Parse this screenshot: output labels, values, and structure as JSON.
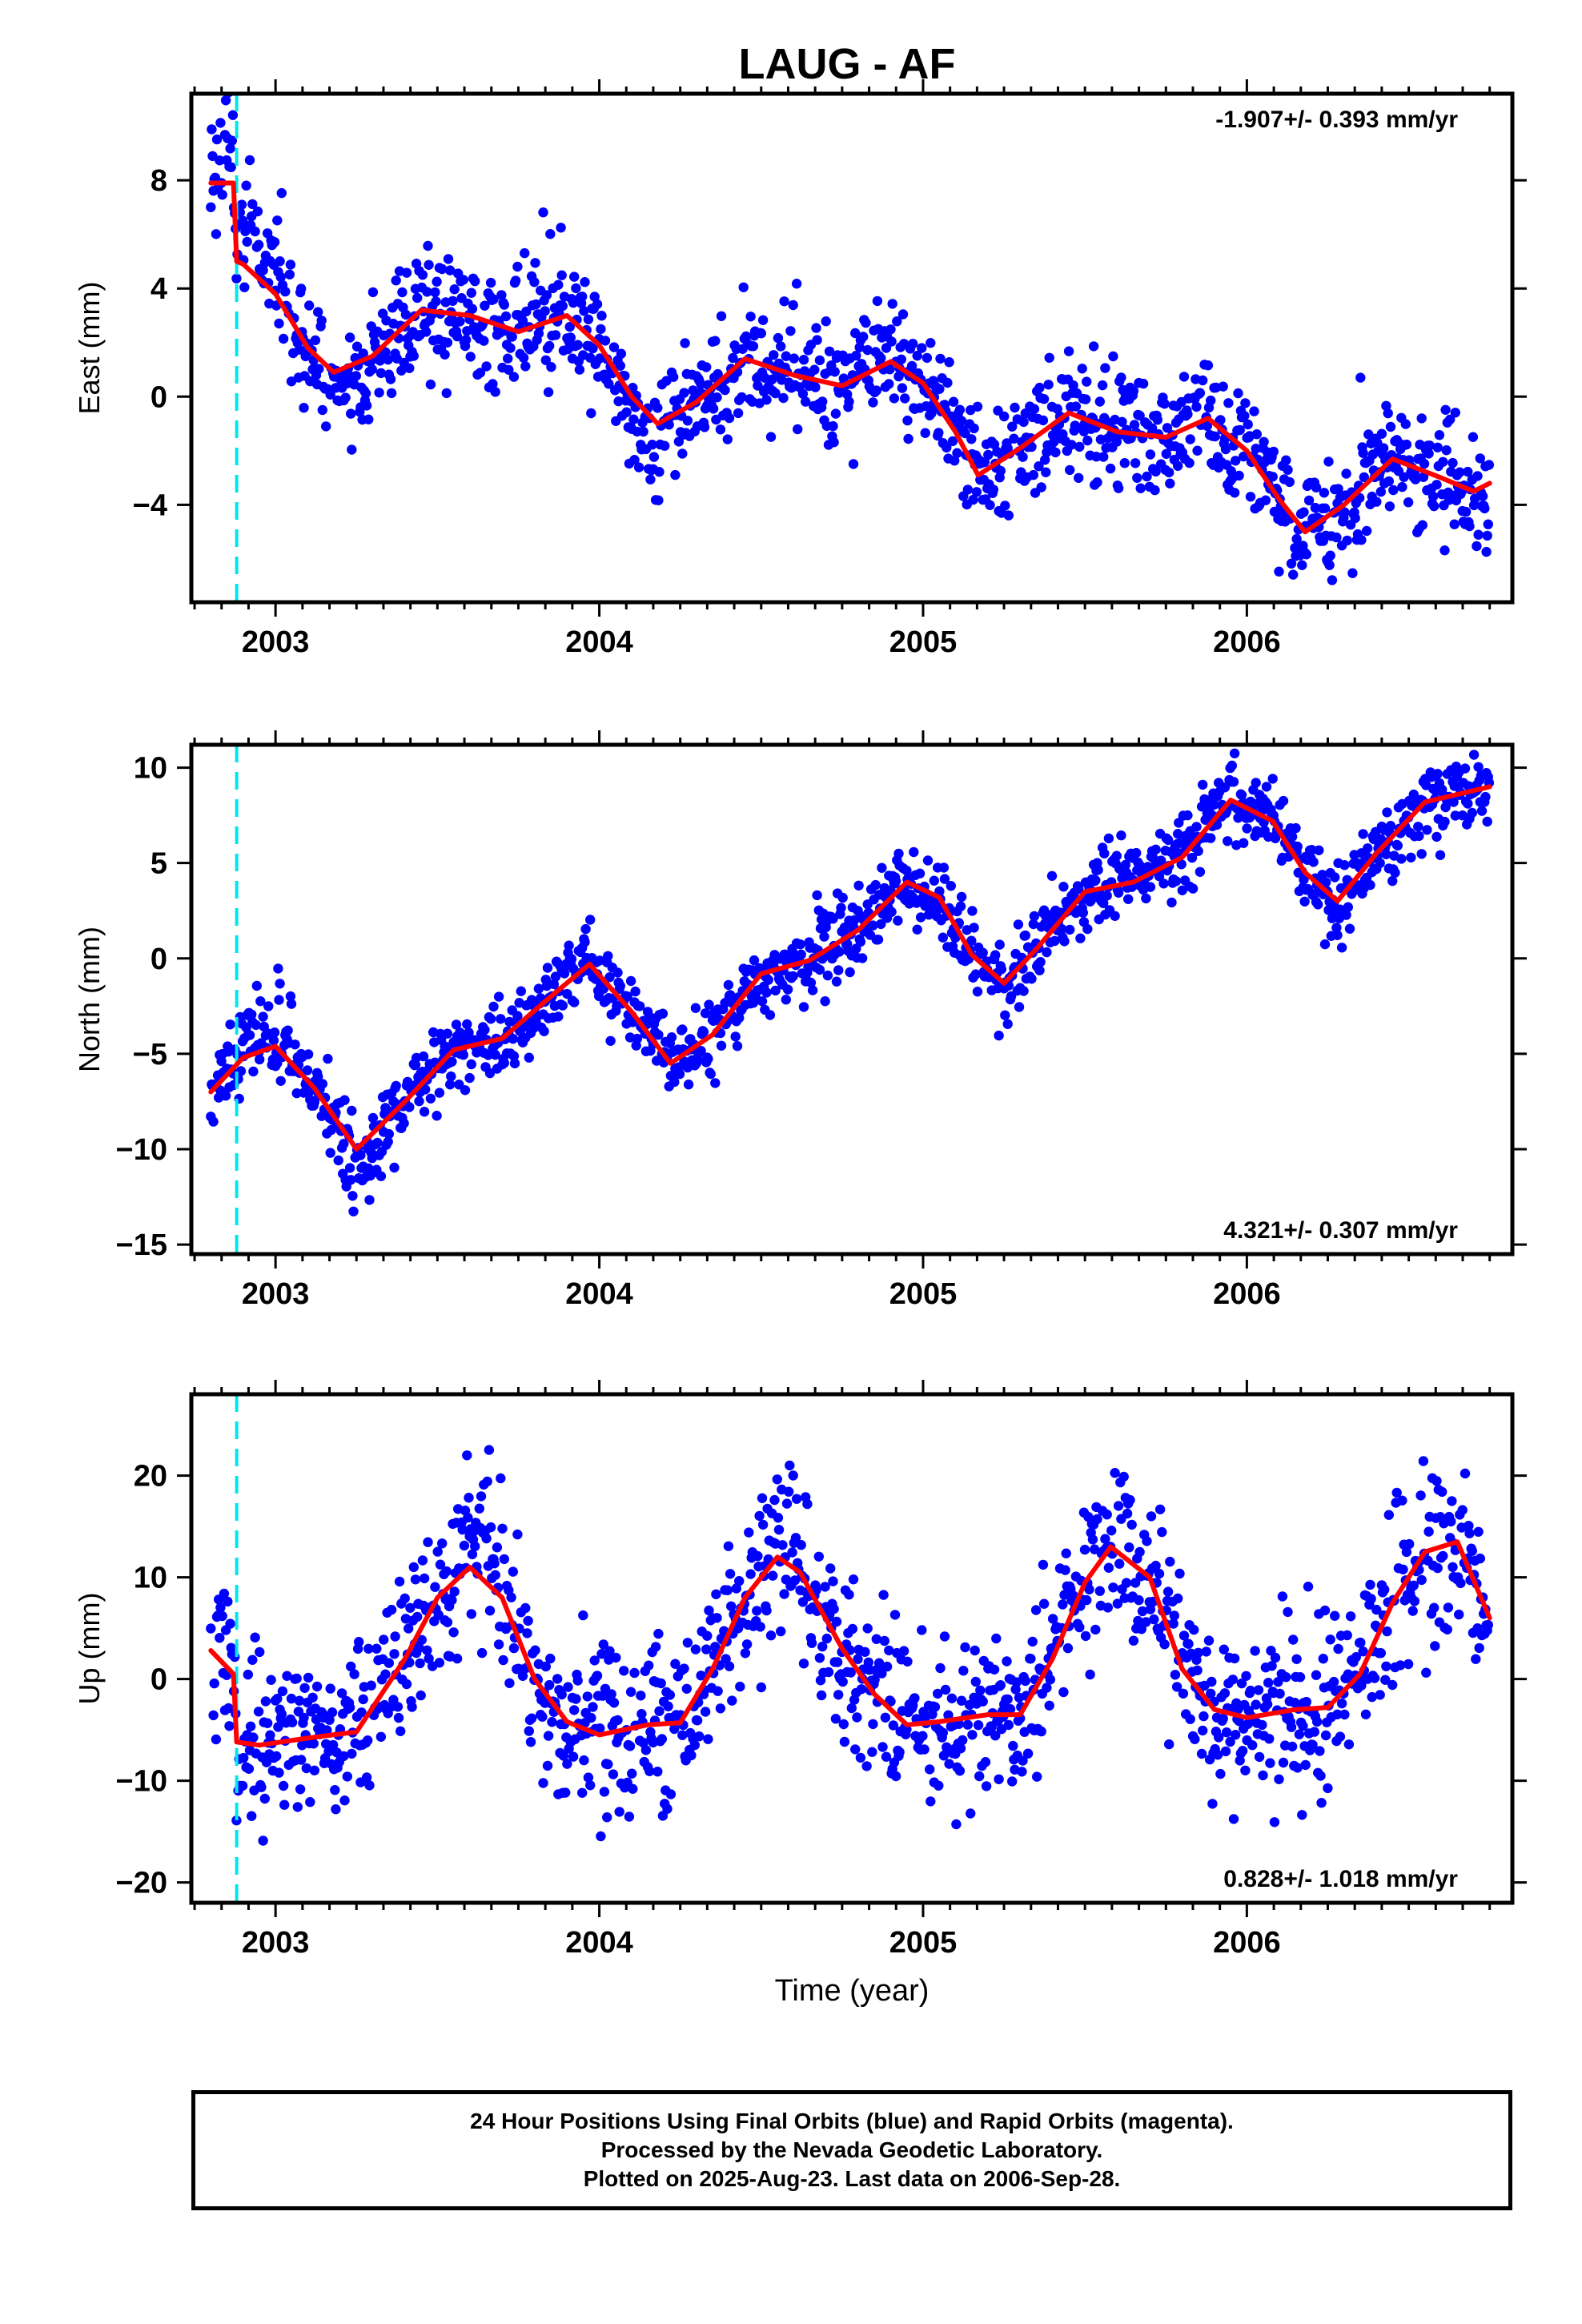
{
  "title": "LAUG - AF",
  "colors": {
    "data_points": "#0000ff",
    "fit_line": "#ff0000",
    "event_line": "#00e5ee",
    "axes": "#000000"
  },
  "chart_data": [
    {
      "type": "scatter",
      "ylabel": "East (mm)",
      "xlim": [
        2002.74,
        2006.82
      ],
      "ylim": [
        -7.6,
        11.2
      ],
      "yticks": [
        -4,
        0,
        4,
        8
      ],
      "xticks": [
        2003,
        2004,
        2005,
        2006
      ],
      "rate_text": "-1.907+/- 0.393 mm/yr",
      "rate_position": "top-right",
      "event_line_x": 2002.88,
      "data_range": [
        2002.8,
        2006.75
      ],
      "fit_x": [
        2002.8,
        2002.87,
        2002.88,
        2002.9,
        2003.0,
        2003.1,
        2003.18,
        2003.3,
        2003.45,
        2003.6,
        2003.75,
        2003.9,
        2004.0,
        2004.1,
        2004.18,
        2004.3,
        2004.45,
        2004.6,
        2004.75,
        2004.9,
        2005.0,
        2005.1,
        2005.17,
        2005.3,
        2005.45,
        2005.6,
        2005.75,
        2005.88,
        2006.0,
        2006.1,
        2006.18,
        2006.3,
        2006.45,
        2006.6,
        2006.7,
        2006.75
      ],
      "fit_y": [
        7.9,
        7.9,
        5.0,
        4.9,
        3.8,
        1.8,
        0.9,
        1.5,
        3.2,
        3.0,
        2.4,
        3.0,
        1.9,
        0.0,
        -1.0,
        -0.2,
        1.4,
        0.8,
        0.4,
        1.3,
        0.5,
        -1.3,
        -2.9,
        -1.9,
        -0.6,
        -1.3,
        -1.5,
        -0.8,
        -2.0,
        -3.8,
        -5.0,
        -4.0,
        -2.3,
        -3.0,
        -3.5,
        -3.2
      ],
      "scatter_noise": 1.1,
      "seed": 11,
      "outlier_windows": [
        {
          "x": [
            2002.8,
            2003.05
          ],
          "dy": 2.0
        },
        {
          "x": [
            2004.08,
            2004.2
          ],
          "dy": -2.8
        },
        {
          "x": [
            2003.2,
            2003.3
          ],
          "dy": -1.5
        }
      ]
    },
    {
      "type": "scatter",
      "ylabel": "North (mm)",
      "xlim": [
        2002.74,
        2006.82
      ],
      "ylim": [
        -15.5,
        11.2
      ],
      "yticks": [
        -15,
        -10,
        -5,
        0,
        5,
        10
      ],
      "xticks": [
        2003,
        2004,
        2005,
        2006
      ],
      "rate_text": "4.321+/- 0.307 mm/yr",
      "rate_position": "bottom-right",
      "event_line_x": 2002.88,
      "data_range": [
        2002.8,
        2006.75
      ],
      "fit_x": [
        2002.8,
        2002.9,
        2003.0,
        2003.12,
        2003.25,
        2003.4,
        2003.55,
        2003.7,
        2003.85,
        2003.97,
        2004.1,
        2004.22,
        2004.35,
        2004.5,
        2004.65,
        2004.8,
        2004.95,
        2005.05,
        2005.15,
        2005.25,
        2005.35,
        2005.5,
        2005.65,
        2005.8,
        2005.95,
        2006.08,
        2006.18,
        2006.28,
        2006.4,
        2006.55,
        2006.75
      ],
      "fit_y": [
        -7.0,
        -5.2,
        -4.6,
        -6.8,
        -10.0,
        -7.5,
        -4.8,
        -4.2,
        -2.0,
        -0.3,
        -2.8,
        -5.5,
        -4.0,
        -0.8,
        -0.1,
        1.5,
        4.0,
        3.2,
        0.2,
        -1.3,
        0.5,
        3.5,
        4.0,
        5.3,
        8.3,
        7.2,
        4.5,
        3.0,
        5.5,
        8.2,
        9.0
      ],
      "scatter_noise": 1.0,
      "seed": 23,
      "outlier_windows": [
        {
          "x": [
            2002.9,
            2003.05
          ],
          "dy": 1.6
        },
        {
          "x": [
            2003.2,
            2003.32
          ],
          "dy": -1.8
        }
      ]
    },
    {
      "type": "scatter",
      "ylabel": "Up (mm)",
      "xlabel": "Time (year)",
      "xlim": [
        2002.74,
        2006.82
      ],
      "ylim": [
        -22,
        28
      ],
      "yticks": [
        -20,
        -10,
        0,
        10,
        20
      ],
      "xticks": [
        2003,
        2004,
        2005,
        2006
      ],
      "rate_text": "0.828+/- 1.018 mm/yr",
      "rate_position": "bottom-right",
      "event_line_x": 2002.88,
      "data_range": [
        2002.8,
        2006.75
      ],
      "fit_x": [
        2002.8,
        2002.87,
        2002.88,
        2002.95,
        2003.1,
        2003.25,
        2003.4,
        2003.5,
        2003.6,
        2003.7,
        2003.8,
        2003.9,
        2004.0,
        2004.15,
        2004.25,
        2004.35,
        2004.45,
        2004.55,
        2004.62,
        2004.75,
        2004.85,
        2004.95,
        2005.05,
        2005.2,
        2005.3,
        2005.4,
        2005.5,
        2005.58,
        2005.7,
        2005.8,
        2005.9,
        2006.0,
        2006.15,
        2006.25,
        2006.35,
        2006.45,
        2006.55,
        2006.65,
        2006.75
      ],
      "fit_y": [
        2.8,
        0.5,
        -6.2,
        -6.5,
        -5.8,
        -5.2,
        2.0,
        8.0,
        11.0,
        8.0,
        0.0,
        -4.2,
        -5.5,
        -4.5,
        -4.3,
        1.0,
        8.0,
        12.0,
        10.5,
        3.0,
        -1.5,
        -4.5,
        -4.2,
        -3.5,
        -3.5,
        2.0,
        9.5,
        13.0,
        10.0,
        1.0,
        -3.0,
        -3.8,
        -3.0,
        -2.8,
        0.5,
        7.5,
        12.5,
        13.5,
        6.0
      ],
      "scatter_noise": 4.0,
      "seed": 37,
      "outlier_windows": [
        {
          "x": [
            2003.55,
            2003.72
          ],
          "dy": 4.5
        },
        {
          "x": [
            2004.5,
            2004.62
          ],
          "dy": 5.0
        }
      ]
    }
  ],
  "footer": {
    "line1": "24 Hour Positions Using Final Orbits (blue) and Rapid Orbits (magenta).",
    "line2": "Processed by the Nevada Geodetic Laboratory.",
    "line3": "Plotted on 2025-Aug-23. Last data on 2006-Sep-28."
  }
}
